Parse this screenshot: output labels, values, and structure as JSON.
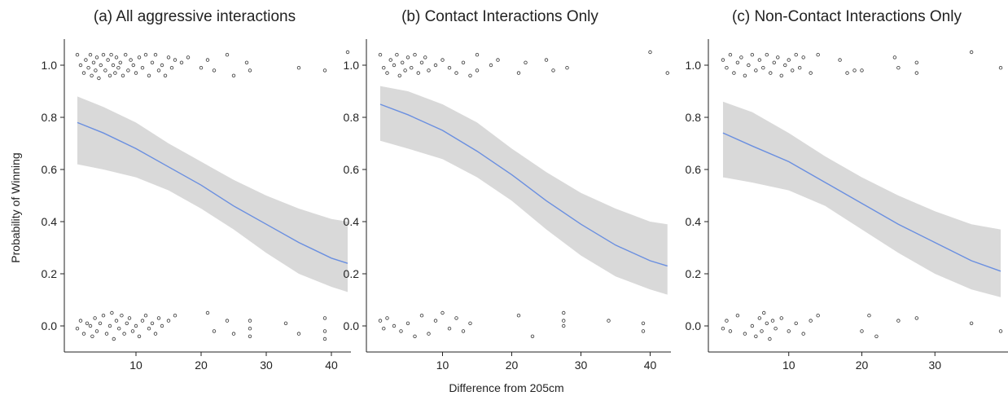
{
  "figure": {
    "ylabel": "Probability of Winning",
    "xlabel": "Difference from 205cm"
  },
  "chart_data": [
    {
      "type": "scatter",
      "title": "(a) All aggressive interactions",
      "xlabel": "Difference from 205cm",
      "ylabel": "Probability of Winning",
      "xlim": [
        -1,
        43
      ],
      "ylim": [
        -0.1,
        1.1
      ],
      "xticks": [
        10,
        20,
        30,
        40
      ],
      "yticks": [
        0.0,
        0.2,
        0.4,
        0.6,
        0.8,
        1.0
      ],
      "grid": false,
      "fit": {
        "x": [
          1,
          5,
          10,
          15,
          20,
          25,
          30,
          35,
          40,
          42.5
        ],
        "y": [
          0.78,
          0.74,
          0.68,
          0.61,
          0.54,
          0.46,
          0.39,
          0.32,
          0.26,
          0.24
        ],
        "ci_low": [
          0.62,
          0.6,
          0.57,
          0.52,
          0.45,
          0.37,
          0.28,
          0.2,
          0.15,
          0.13
        ],
        "ci_high": [
          0.88,
          0.84,
          0.78,
          0.7,
          0.63,
          0.56,
          0.5,
          0.45,
          0.41,
          0.4
        ]
      },
      "points": {
        "x": [
          1,
          1.5,
          2,
          2.3,
          2.7,
          3,
          3.2,
          3.5,
          3.8,
          4,
          4.3,
          4.6,
          5,
          5.3,
          5.7,
          6,
          6.2,
          6.5,
          6.8,
          7,
          7.3,
          7.6,
          8,
          8.4,
          8.8,
          9.2,
          9.6,
          10,
          10.5,
          11,
          11.5,
          12,
          12.5,
          13,
          13.5,
          14,
          14.5,
          15,
          15.5,
          16,
          17,
          18,
          20,
          21,
          22,
          24,
          25,
          27,
          27.5,
          35,
          39,
          42.5,
          1,
          1.5,
          2,
          2.5,
          3,
          3.3,
          3.7,
          4,
          4.5,
          5,
          5.5,
          6,
          6.3,
          6.6,
          7,
          7.4,
          7.8,
          8.2,
          8.6,
          9,
          9.5,
          10,
          10.5,
          11,
          11.5,
          12,
          12.5,
          13,
          13.5,
          14,
          15,
          16,
          21,
          22,
          24,
          25,
          27.5,
          27.5,
          27.5,
          33,
          35,
          39,
          39,
          39
        ],
        "y": [
          1.04,
          1.0,
          0.97,
          1.02,
          0.99,
          1.04,
          0.96,
          1.01,
          0.98,
          1.03,
          0.95,
          1.0,
          1.04,
          0.98,
          1.02,
          0.96,
          1.04,
          1.0,
          0.97,
          1.03,
          0.99,
          1.01,
          0.96,
          1.04,
          0.98,
          1.02,
          1.0,
          0.97,
          1.03,
          0.99,
          1.04,
          0.96,
          1.01,
          1.04,
          0.98,
          1.0,
          0.96,
          1.03,
          0.99,
          1.02,
          1.01,
          1.03,
          0.99,
          1.02,
          0.98,
          1.04,
          0.96,
          1.01,
          0.98,
          0.99,
          0.98,
          1.05,
          -0.01,
          0.02,
          -0.03,
          0.01,
          0.0,
          -0.04,
          0.03,
          -0.02,
          0.01,
          0.04,
          -0.03,
          0.0,
          0.05,
          -0.05,
          0.02,
          -0.01,
          0.04,
          -0.03,
          0.01,
          0.03,
          -0.02,
          0.0,
          -0.04,
          0.02,
          0.04,
          -0.01,
          0.01,
          -0.03,
          0.03,
          0.0,
          0.02,
          0.04,
          0.05,
          -0.02,
          0.02,
          -0.03,
          0.02,
          -0.01,
          -0.04,
          0.01,
          -0.03,
          0.03,
          -0.02,
          -0.05
        ]
      }
    },
    {
      "type": "scatter",
      "title": "(b) Contact Interactions Only",
      "xlabel": "Difference from 205cm",
      "ylabel": "Probability of Winning",
      "xlim": [
        -1,
        43
      ],
      "ylim": [
        -0.1,
        1.1
      ],
      "xticks": [
        10,
        20,
        30,
        40
      ],
      "yticks": [
        0.0,
        0.2,
        0.4,
        0.6,
        0.8,
        1.0
      ],
      "grid": false,
      "fit": {
        "x": [
          1,
          5,
          10,
          15,
          20,
          25,
          30,
          35,
          40,
          42.5
        ],
        "y": [
          0.85,
          0.81,
          0.75,
          0.67,
          0.58,
          0.48,
          0.39,
          0.31,
          0.25,
          0.23
        ],
        "ci_low": [
          0.71,
          0.68,
          0.64,
          0.57,
          0.48,
          0.37,
          0.27,
          0.19,
          0.14,
          0.12
        ],
        "ci_high": [
          0.92,
          0.9,
          0.85,
          0.78,
          0.68,
          0.59,
          0.51,
          0.45,
          0.4,
          0.39
        ]
      },
      "points": {
        "x": [
          1,
          1.5,
          2,
          2.5,
          3,
          3.4,
          3.8,
          4.2,
          4.6,
          5,
          5.5,
          6,
          6.5,
          7,
          7.5,
          8,
          9,
          10,
          11,
          12,
          13,
          14,
          15,
          15,
          17,
          18,
          21,
          22,
          25,
          26,
          28,
          40,
          42.5,
          1,
          1.5,
          2,
          3,
          4,
          5,
          6,
          7,
          8,
          9,
          10,
          11,
          12,
          13,
          14,
          21,
          23,
          27.5,
          27.5,
          27.5,
          34,
          39,
          39
        ],
        "y": [
          1.04,
          0.99,
          0.97,
          1.02,
          1.0,
          1.04,
          0.96,
          1.01,
          0.98,
          1.03,
          0.99,
          1.04,
          0.97,
          1.01,
          1.03,
          0.98,
          1.0,
          1.02,
          0.99,
          0.97,
          1.01,
          0.96,
          0.98,
          1.04,
          1.0,
          1.02,
          0.97,
          1.01,
          1.02,
          0.98,
          0.99,
          1.05,
          0.97,
          0.02,
          -0.01,
          0.03,
          0.0,
          -0.02,
          0.01,
          -0.04,
          0.04,
          -0.03,
          0.02,
          0.05,
          -0.01,
          0.03,
          -0.02,
          0.01,
          0.04,
          -0.04,
          0.05,
          0.02,
          0.0,
          0.02,
          0.01,
          -0.02
        ]
      }
    },
    {
      "type": "scatter",
      "title": "(c) Non-Contact Interactions Only",
      "xlabel": "Difference from 205cm",
      "ylabel": "Probability of Winning",
      "xlim": [
        -1,
        40
      ],
      "ylim": [
        -0.1,
        1.1
      ],
      "xticks": [
        10,
        20,
        30
      ],
      "yticks": [
        0.0,
        0.2,
        0.4,
        0.6,
        0.8,
        1.0
      ],
      "grid": false,
      "fit": {
        "x": [
          1,
          5,
          10,
          15,
          20,
          25,
          30,
          35,
          39
        ],
        "y": [
          0.74,
          0.69,
          0.63,
          0.55,
          0.47,
          0.39,
          0.32,
          0.25,
          0.21
        ],
        "ci_low": [
          0.57,
          0.55,
          0.52,
          0.46,
          0.37,
          0.28,
          0.2,
          0.14,
          0.11
        ],
        "ci_high": [
          0.86,
          0.82,
          0.74,
          0.65,
          0.57,
          0.5,
          0.44,
          0.39,
          0.37
        ]
      },
      "points": {
        "x": [
          1,
          1.5,
          2,
          2.5,
          3,
          3.5,
          4,
          4.5,
          5,
          5.5,
          6,
          6.5,
          7,
          7.5,
          8,
          8.5,
          9,
          9.5,
          10,
          10.5,
          11,
          11.5,
          12,
          13,
          14,
          17,
          18,
          19,
          20,
          24.5,
          25,
          27.5,
          27.5,
          35,
          39,
          1,
          1.5,
          2,
          3,
          4,
          5,
          5.5,
          6,
          6.3,
          6.6,
          7,
          7.4,
          7.8,
          8.2,
          9,
          10,
          11,
          12,
          13,
          14,
          20,
          21,
          22,
          25,
          27.5,
          35,
          39
        ],
        "y": [
          1.02,
          0.99,
          1.04,
          0.97,
          1.01,
          1.03,
          0.96,
          1.0,
          1.04,
          0.98,
          1.02,
          0.99,
          1.04,
          0.97,
          1.01,
          1.03,
          0.96,
          1.0,
          1.02,
          0.98,
          1.04,
          0.99,
          1.03,
          0.97,
          1.04,
          1.02,
          0.97,
          0.98,
          0.98,
          1.03,
          0.99,
          1.01,
          0.97,
          1.05,
          0.99,
          -0.01,
          0.02,
          -0.02,
          0.04,
          -0.03,
          0.0,
          -0.04,
          0.03,
          -0.02,
          0.05,
          0.01,
          -0.05,
          0.02,
          -0.01,
          0.03,
          -0.02,
          0.01,
          -0.03,
          0.02,
          0.04,
          -0.02,
          0.04,
          -0.04,
          0.02,
          0.03,
          0.01,
          -0.02
        ]
      }
    }
  ]
}
